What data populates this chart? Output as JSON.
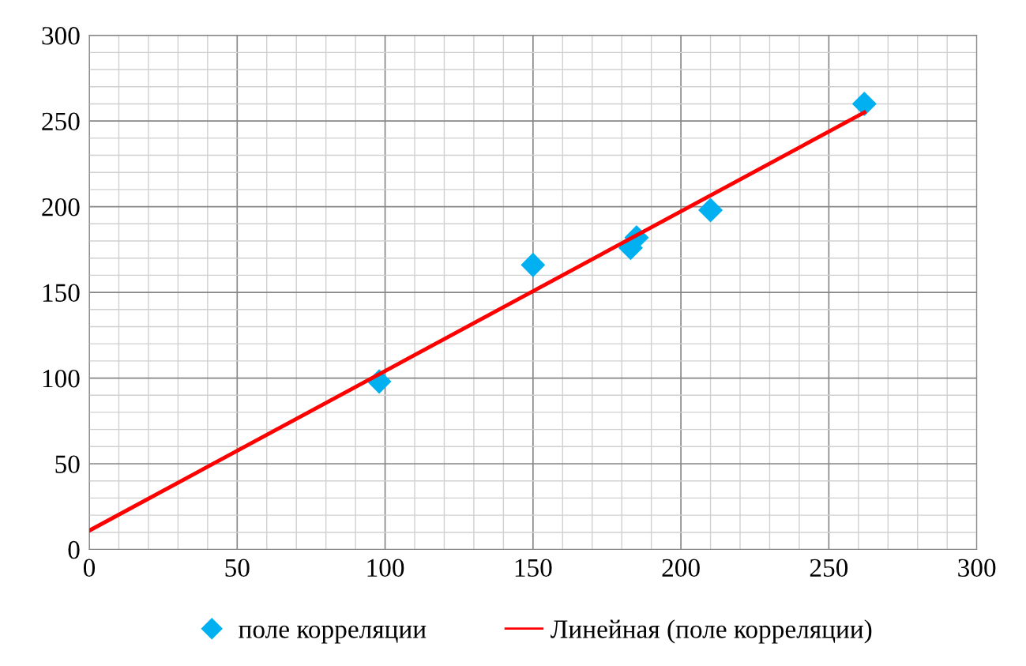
{
  "chart_data": {
    "type": "scatter",
    "series": [
      {
        "name": "поле корреляции",
        "color": "#00b0f0",
        "marker": "diamond",
        "x": [
          98,
          150,
          183,
          185,
          210,
          262
        ],
        "values": [
          98,
          166,
          176,
          182,
          198,
          260
        ]
      },
      {
        "name": "Линейная (поле корреляции)",
        "type": "line",
        "color": "#ff0000",
        "marker": "none",
        "line_style": "solid",
        "x": [
          0,
          262
        ],
        "values": [
          11,
          255
        ]
      }
    ],
    "xlim": [
      0,
      300
    ],
    "xticks": [
      0,
      50,
      100,
      150,
      200,
      250,
      300
    ],
    "ylim": [
      0,
      300
    ],
    "yticks": [
      0,
      50,
      100,
      150,
      200,
      250,
      300
    ],
    "grid": true,
    "legend": "bottom"
  }
}
